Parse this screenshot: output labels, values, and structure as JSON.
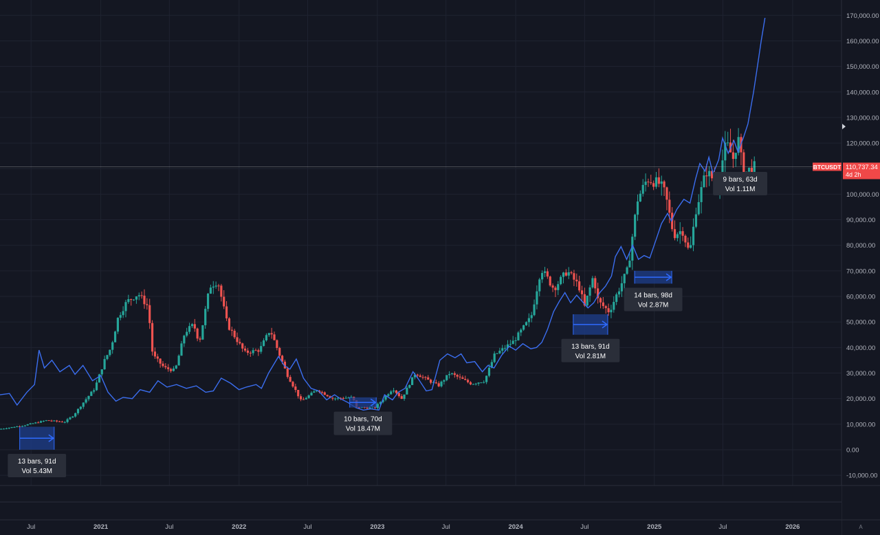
{
  "chart_data": {
    "type": "candlestick",
    "symbol": "BTCUSDT",
    "last_price_label": "110,737.34",
    "countdown_label": "4d 2h",
    "last_price": 110737.34,
    "ylim": [
      -14000,
      176000
    ],
    "y_ticks": [
      -10000,
      0,
      10000,
      20000,
      30000,
      40000,
      50000,
      60000,
      70000,
      80000,
      90000,
      100000,
      110000,
      120000,
      130000,
      140000,
      150000,
      160000,
      170000
    ],
    "y_tick_labels": [
      "-10,000.00",
      "0.00",
      "10,000.00",
      "20,000.00",
      "30,000.00",
      "40,000.00",
      "50,000.00",
      "60,000.00",
      "70,000.00",
      "80,000.00",
      "90,000.00",
      "100,000.00",
      "",
      "120,000.00",
      "130,000.00",
      "140,000.00",
      "150,000.00",
      "160,000.00",
      "170,000.00"
    ],
    "xlim": [
      "2020-04-10",
      "2026-05-10"
    ],
    "x_ticks": [
      {
        "date": "2020-07-01",
        "label": "Jul"
      },
      {
        "date": "2021-01-01",
        "label": "2021"
      },
      {
        "date": "2021-07-01",
        "label": "Jul"
      },
      {
        "date": "2022-01-01",
        "label": "2022"
      },
      {
        "date": "2022-07-01",
        "label": "Jul"
      },
      {
        "date": "2023-01-01",
        "label": "2023"
      },
      {
        "date": "2023-07-01",
        "label": "Jul"
      },
      {
        "date": "2024-01-01",
        "label": "2024"
      },
      {
        "date": "2024-07-01",
        "label": "Jul"
      },
      {
        "date": "2025-01-01",
        "label": "2025"
      },
      {
        "date": "2025-07-01",
        "label": "Jul"
      },
      {
        "date": "2026-01-01",
        "label": "2026"
      }
    ],
    "price_path": [
      [
        "2020-04-10",
        8000
      ],
      [
        "2020-06-15",
        9500
      ],
      [
        "2020-08-15",
        11500
      ],
      [
        "2020-10-01",
        10800
      ],
      [
        "2020-10-25",
        13500
      ],
      [
        "2020-11-20",
        18500
      ],
      [
        "2020-12-20",
        24000
      ],
      [
        "2021-01-15",
        35000
      ],
      [
        "2021-02-01",
        40000
      ],
      [
        "2021-02-20",
        52000
      ],
      [
        "2021-03-15",
        58000
      ],
      [
        "2021-04-14",
        61000
      ],
      [
        "2021-05-10",
        56000
      ],
      [
        "2021-05-22",
        37000
      ],
      [
        "2021-06-22",
        32000
      ],
      [
        "2021-07-20",
        31000
      ],
      [
        "2021-08-15",
        46000
      ],
      [
        "2021-09-07",
        49000
      ],
      [
        "2021-09-22",
        42000
      ],
      [
        "2021-10-20",
        64000
      ],
      [
        "2021-11-10",
        66000
      ],
      [
        "2021-12-05",
        49000
      ],
      [
        "2022-01-20",
        38000
      ],
      [
        "2022-02-28",
        39000
      ],
      [
        "2022-03-28",
        47000
      ],
      [
        "2022-05-10",
        30000
      ],
      [
        "2022-06-18",
        19000
      ],
      [
        "2022-07-30",
        23500
      ],
      [
        "2022-09-10",
        20000
      ],
      [
        "2022-11-01",
        20500
      ],
      [
        "2022-11-10",
        16500
      ],
      [
        "2022-12-30",
        16500
      ],
      [
        "2023-02-15",
        24000
      ],
      [
        "2023-03-10",
        20000
      ],
      [
        "2023-04-15",
        30000
      ],
      [
        "2023-06-15",
        25000
      ],
      [
        "2023-07-15",
        30000
      ],
      [
        "2023-09-10",
        25800
      ],
      [
        "2023-10-15",
        27000
      ],
      [
        "2023-11-10",
        37000
      ],
      [
        "2023-12-31",
        42500
      ],
      [
        "2024-02-15",
        52000
      ],
      [
        "2024-03-12",
        71000
      ],
      [
        "2024-04-15",
        63000
      ],
      [
        "2024-05-20",
        70000
      ],
      [
        "2024-06-20",
        64000
      ],
      [
        "2024-07-05",
        56000
      ],
      [
        "2024-07-28",
        68000
      ],
      [
        "2024-08-10",
        58000
      ],
      [
        "2024-09-08",
        54000
      ],
      [
        "2024-10-28",
        71000
      ],
      [
        "2024-11-12",
        88000
      ],
      [
        "2024-11-22",
        98000
      ],
      [
        "2024-12-17",
        106000
      ],
      [
        "2025-01-20",
        104000
      ],
      [
        "2025-02-03",
        100000
      ],
      [
        "2025-02-25",
        84000
      ],
      [
        "2025-03-20",
        86000
      ],
      [
        "2025-04-08",
        76500
      ],
      [
        "2025-04-25",
        94000
      ],
      [
        "2025-05-22",
        109000
      ],
      [
        "2025-06-20",
        104000
      ],
      [
        "2025-07-14",
        120000
      ],
      [
        "2025-08-01",
        114000
      ],
      [
        "2025-08-14",
        122000
      ],
      [
        "2025-08-28",
        108000
      ],
      [
        "2025-09-25",
        110700
      ]
    ],
    "series": [
      {
        "type": "line",
        "color": "#3b6ef0",
        "points": [
          [
            "2020-04-10",
            21500
          ],
          [
            "2020-05-05",
            22000
          ],
          [
            "2020-05-25",
            17500
          ],
          [
            "2020-06-20",
            22500
          ],
          [
            "2020-07-10",
            25500
          ],
          [
            "2020-07-22",
            39000
          ],
          [
            "2020-08-05",
            32000
          ],
          [
            "2020-08-25",
            35000
          ],
          [
            "2020-09-15",
            30500
          ],
          [
            "2020-10-10",
            33000
          ],
          [
            "2020-10-25",
            29500
          ],
          [
            "2020-11-15",
            33000
          ],
          [
            "2020-12-10",
            27000
          ],
          [
            "2021-01-01",
            29000
          ],
          [
            "2021-01-20",
            22500
          ],
          [
            "2021-02-10",
            19000
          ],
          [
            "2021-03-01",
            20500
          ],
          [
            "2021-03-25",
            20000
          ],
          [
            "2021-04-15",
            23500
          ],
          [
            "2021-05-10",
            22500
          ],
          [
            "2021-06-01",
            27000
          ],
          [
            "2021-06-25",
            24500
          ],
          [
            "2021-07-20",
            25500
          ],
          [
            "2021-08-15",
            24000
          ],
          [
            "2021-09-10",
            25000
          ],
          [
            "2021-10-05",
            22500
          ],
          [
            "2021-10-25",
            23000
          ],
          [
            "2021-11-15",
            28000
          ],
          [
            "2021-12-10",
            26000
          ],
          [
            "2022-01-01",
            23500
          ],
          [
            "2022-01-20",
            24500
          ],
          [
            "2022-02-15",
            25500
          ],
          [
            "2022-03-01",
            24000
          ],
          [
            "2022-03-20",
            30000
          ],
          [
            "2022-04-15",
            36500
          ],
          [
            "2022-04-30",
            33000
          ],
          [
            "2022-05-15",
            31500
          ],
          [
            "2022-06-01",
            35500
          ],
          [
            "2022-06-20",
            28000
          ],
          [
            "2022-07-10",
            24000
          ],
          [
            "2022-07-30",
            23000
          ],
          [
            "2022-08-20",
            19500
          ],
          [
            "2022-09-10",
            21500
          ],
          [
            "2022-09-25",
            20000
          ],
          [
            "2022-10-15",
            18500
          ],
          [
            "2022-11-05",
            16500
          ],
          [
            "2022-11-25",
            15500
          ],
          [
            "2022-12-15",
            16000
          ],
          [
            "2023-01-05",
            15500
          ],
          [
            "2023-01-20",
            21500
          ],
          [
            "2023-02-10",
            19500
          ],
          [
            "2023-02-25",
            22500
          ],
          [
            "2023-03-15",
            24000
          ],
          [
            "2023-04-05",
            30500
          ],
          [
            "2023-04-20",
            27500
          ],
          [
            "2023-05-10",
            23000
          ],
          [
            "2023-05-25",
            23500
          ],
          [
            "2023-06-15",
            35000
          ],
          [
            "2023-07-05",
            37500
          ],
          [
            "2023-07-25",
            36000
          ],
          [
            "2023-08-10",
            37500
          ],
          [
            "2023-08-25",
            34000
          ],
          [
            "2023-09-15",
            34500
          ],
          [
            "2023-10-05",
            30500
          ],
          [
            "2023-10-20",
            33000
          ],
          [
            "2023-11-05",
            32000
          ],
          [
            "2023-11-25",
            37000
          ],
          [
            "2023-12-15",
            40500
          ],
          [
            "2024-01-01",
            39000
          ],
          [
            "2024-01-20",
            41500
          ],
          [
            "2024-02-10",
            39500
          ],
          [
            "2024-02-25",
            40000
          ],
          [
            "2024-03-10",
            42000
          ],
          [
            "2024-03-25",
            47000
          ],
          [
            "2024-04-10",
            54000
          ],
          [
            "2024-04-25",
            58000
          ],
          [
            "2024-05-10",
            61500
          ],
          [
            "2024-05-25",
            57500
          ],
          [
            "2024-06-10",
            60500
          ],
          [
            "2024-06-25",
            58000
          ],
          [
            "2024-07-10",
            55500
          ],
          [
            "2024-07-25",
            57500
          ],
          [
            "2024-08-10",
            61500
          ],
          [
            "2024-08-25",
            64000
          ],
          [
            "2024-09-10",
            68000
          ],
          [
            "2024-09-20",
            75500
          ],
          [
            "2024-10-05",
            79500
          ],
          [
            "2024-10-20",
            74500
          ],
          [
            "2024-11-05",
            80000
          ],
          [
            "2024-11-20",
            74500
          ],
          [
            "2024-12-05",
            76000
          ],
          [
            "2024-12-20",
            75000
          ],
          [
            "2025-01-05",
            82000
          ],
          [
            "2025-01-20",
            88500
          ],
          [
            "2025-02-05",
            92500
          ],
          [
            "2025-02-15",
            89500
          ],
          [
            "2025-03-01",
            94000
          ],
          [
            "2025-03-20",
            98000
          ],
          [
            "2025-04-05",
            96500
          ],
          [
            "2025-04-20",
            106000
          ],
          [
            "2025-05-01",
            112000
          ],
          [
            "2025-05-15",
            109000
          ],
          [
            "2025-05-25",
            114500
          ],
          [
            "2025-06-05",
            108000
          ],
          [
            "2025-06-20",
            113500
          ],
          [
            "2025-06-30",
            122000
          ],
          [
            "2025-07-15",
            116000
          ],
          [
            "2025-07-30",
            121000
          ],
          [
            "2025-08-10",
            116500
          ],
          [
            "2025-08-25",
            122500
          ],
          [
            "2025-09-05",
            127500
          ],
          [
            "2025-09-20",
            140000
          ],
          [
            "2025-09-30",
            150000
          ],
          [
            "2025-10-10",
            160000
          ],
          [
            "2025-10-20",
            169000
          ]
        ]
      }
    ],
    "measurements": [
      {
        "start": "2020-06-01",
        "end": "2020-08-31",
        "ylim_box": [
          0,
          9000
        ],
        "label_top": "13 bars, 91d",
        "label_bottom": "Vol 5.43M"
      },
      {
        "start": "2022-10-20",
        "end": "2022-12-29",
        "ylim_box": [
          16500,
          20500
        ],
        "label_top": "10 bars, 70d",
        "label_bottom": "Vol 18.47M"
      },
      {
        "start": "2024-06-01",
        "end": "2024-08-31",
        "ylim_box": [
          45000,
          53000
        ],
        "label_top": "13 bars, 91d",
        "label_bottom": "Vol 2.81M"
      },
      {
        "start": "2024-11-10",
        "end": "2025-02-16",
        "ylim_box": [
          65000,
          70000
        ],
        "label_top": "14 bars, 98d",
        "label_bottom": "Vol 2.87M"
      },
      {
        "start": "2025-07-15",
        "end": "2025-09-16",
        "ylim_box": null,
        "label_top": "9 bars, 63d",
        "label_bottom": "Vol 1.11M"
      }
    ],
    "colors": {
      "background": "#141722",
      "grid": "#1f2330",
      "up": "#26a69a",
      "down": "#ef5350",
      "line": "#3b6ef0",
      "measure_fill": "#1e3f8c",
      "measure_line": "#2f6bff",
      "tag": "#f04848",
      "tick_text": "#b2b5be"
    },
    "grid": true,
    "corner_label": "A"
  }
}
